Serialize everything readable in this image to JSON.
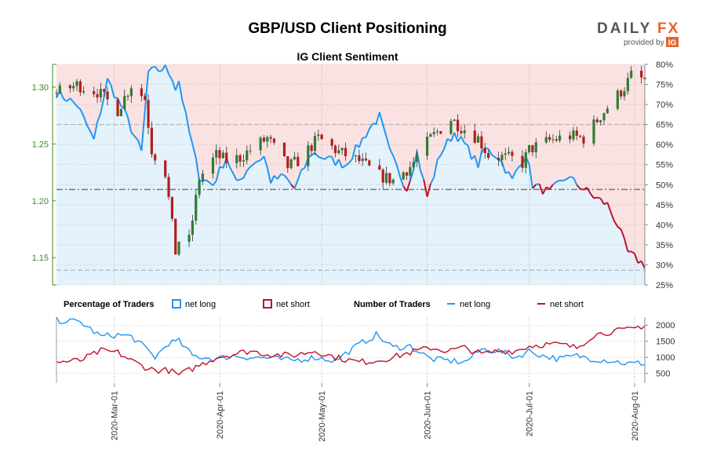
{
  "header": {
    "title": "GBP/USD Client Positioning",
    "brand_daily": "DAILY",
    "brand_fx": "FX",
    "provided_by": "provided by",
    "ig": "IG"
  },
  "colors": {
    "net_long": "#2196f3",
    "net_short": "#c0102a",
    "candle_up": "#2e7d32",
    "candle_down": "#b71c1c",
    "long_fill": "#e4f2fb",
    "short_fill": "#fbe2e2",
    "price_axis": "#3a8a22",
    "brand_orange": "#e8632b"
  },
  "chart_data": [
    {
      "type": "candlestick+area",
      "title": "IG Client Sentiment",
      "price_axis": {
        "side": "left",
        "ticks": [
          "1.15",
          "1.20",
          "1.25",
          "1.30"
        ],
        "ylim": [
          1.126,
          1.32
        ]
      },
      "sentiment_axis": {
        "side": "right",
        "ticks": [
          "25%",
          "30%",
          "35%",
          "40%",
          "45%",
          "50%",
          "55%",
          "60%",
          "65%",
          "70%",
          "75%",
          "80%"
        ],
        "ylim": [
          25,
          80
        ]
      },
      "x_range": [
        "2020-02-13",
        "2020-08-04"
      ],
      "reference_levels": [
        1.21,
        1.139,
        1.267
      ],
      "price_anchors": [
        [
          "2020-02-13",
          1.295
        ],
        [
          "2020-02-19",
          1.302
        ],
        [
          "2020-02-25",
          1.296
        ],
        [
          "2020-03-02",
          1.28
        ],
        [
          "2020-03-06",
          1.302
        ],
        [
          "2020-03-10",
          1.29
        ],
        [
          "2020-03-12",
          1.245
        ],
        [
          "2020-03-16",
          1.225
        ],
        [
          "2020-03-19",
          1.155
        ],
        [
          "2020-03-20",
          1.165
        ],
        [
          "2020-03-23",
          1.165
        ],
        [
          "2020-03-26",
          1.22
        ],
        [
          "2020-03-31",
          1.24
        ],
        [
          "2020-04-03",
          1.235
        ],
        [
          "2020-04-07",
          1.238
        ],
        [
          "2020-04-10",
          1.245
        ],
        [
          "2020-04-15",
          1.255
        ],
        [
          "2020-04-21",
          1.23
        ],
        [
          "2020-04-24",
          1.235
        ],
        [
          "2020-04-30",
          1.255
        ],
        [
          "2020-05-06",
          1.243
        ],
        [
          "2020-05-12",
          1.235
        ],
        [
          "2020-05-18",
          1.222
        ],
        [
          "2020-05-22",
          1.218
        ],
        [
          "2020-05-27",
          1.23
        ],
        [
          "2020-06-02",
          1.255
        ],
        [
          "2020-06-08",
          1.272
        ],
        [
          "2020-06-11",
          1.265
        ],
        [
          "2020-06-16",
          1.255
        ],
        [
          "2020-06-19",
          1.24
        ],
        [
          "2020-06-26",
          1.237
        ],
        [
          "2020-06-29",
          1.233
        ],
        [
          "2020-07-01",
          1.245
        ],
        [
          "2020-07-07",
          1.253
        ],
        [
          "2020-07-13",
          1.257
        ],
        [
          "2020-07-17",
          1.255
        ],
        [
          "2020-07-22",
          1.275
        ],
        [
          "2020-07-29",
          1.3
        ],
        [
          "2020-07-31",
          1.31
        ],
        [
          "2020-08-04",
          1.306
        ]
      ],
      "net_long_pct_anchors": [
        [
          "2020-02-13",
          73
        ],
        [
          "2020-02-19",
          70
        ],
        [
          "2020-02-24",
          61
        ],
        [
          "2020-02-28",
          76
        ],
        [
          "2020-03-04",
          68
        ],
        [
          "2020-03-09",
          58
        ],
        [
          "2020-03-11",
          78
        ],
        [
          "2020-03-16",
          79
        ],
        [
          "2020-03-18",
          77
        ],
        [
          "2020-03-19",
          74
        ],
        [
          "2020-03-20",
          76
        ],
        [
          "2020-03-22",
          67
        ],
        [
          "2020-03-26",
          52
        ],
        [
          "2020-03-30",
          50
        ],
        [
          "2020-04-03",
          57
        ],
        [
          "2020-04-06",
          50
        ],
        [
          "2020-04-10",
          55
        ],
        [
          "2020-04-14",
          57
        ],
        [
          "2020-04-16",
          51
        ],
        [
          "2020-04-20",
          52
        ],
        [
          "2020-04-23",
          49
        ],
        [
          "2020-04-28",
          58
        ],
        [
          "2020-05-04",
          56
        ],
        [
          "2020-05-08",
          55
        ],
        [
          "2020-05-12",
          60
        ],
        [
          "2020-05-15",
          64
        ],
        [
          "2020-05-18",
          67
        ],
        [
          "2020-05-21",
          58
        ],
        [
          "2020-05-26",
          49
        ],
        [
          "2020-05-29",
          58
        ],
        [
          "2020-06-01",
          47
        ],
        [
          "2020-06-05",
          58
        ],
        [
          "2020-06-09",
          63
        ],
        [
          "2020-06-12",
          60
        ],
        [
          "2020-06-16",
          55
        ],
        [
          "2020-06-18",
          59
        ],
        [
          "2020-06-22",
          57
        ],
        [
          "2020-06-26",
          51
        ],
        [
          "2020-06-30",
          58
        ],
        [
          "2020-07-02",
          50
        ],
        [
          "2020-07-07",
          48
        ],
        [
          "2020-07-12",
          52
        ],
        [
          "2020-07-17",
          49
        ],
        [
          "2020-07-20",
          47
        ],
        [
          "2020-07-24",
          45
        ],
        [
          "2020-07-27",
          40
        ],
        [
          "2020-07-30",
          33
        ],
        [
          "2020-08-04",
          30
        ]
      ],
      "net_short_pct_anchors": [
        [
          "2020-02-13",
          27
        ],
        [
          "2020-02-19",
          30
        ],
        [
          "2020-02-24",
          39
        ],
        [
          "2020-02-28",
          24
        ],
        [
          "2020-03-04",
          32
        ],
        [
          "2020-03-09",
          42
        ],
        [
          "2020-03-11",
          22
        ],
        [
          "2020-03-16",
          21
        ],
        [
          "2020-03-18",
          23
        ],
        [
          "2020-03-19",
          26
        ],
        [
          "2020-03-20",
          24
        ],
        [
          "2020-03-22",
          33
        ],
        [
          "2020-03-26",
          48
        ],
        [
          "2020-03-30",
          50
        ],
        [
          "2020-04-03",
          43
        ],
        [
          "2020-04-06",
          50
        ],
        [
          "2020-04-10",
          45
        ],
        [
          "2020-04-14",
          43
        ],
        [
          "2020-04-16",
          49
        ],
        [
          "2020-04-20",
          48
        ],
        [
          "2020-04-23",
          51
        ],
        [
          "2020-04-28",
          42
        ],
        [
          "2020-05-04",
          44
        ],
        [
          "2020-05-08",
          45
        ],
        [
          "2020-05-12",
          40
        ],
        [
          "2020-05-15",
          36
        ],
        [
          "2020-05-18",
          33
        ],
        [
          "2020-05-21",
          42
        ],
        [
          "2020-05-26",
          51
        ],
        [
          "2020-05-29",
          42
        ],
        [
          "2020-06-01",
          53
        ],
        [
          "2020-06-05",
          42
        ],
        [
          "2020-06-09",
          37
        ],
        [
          "2020-06-12",
          40
        ],
        [
          "2020-06-16",
          45
        ],
        [
          "2020-06-18",
          41
        ],
        [
          "2020-06-22",
          43
        ],
        [
          "2020-06-26",
          49
        ],
        [
          "2020-06-30",
          42
        ],
        [
          "2020-07-02",
          50
        ],
        [
          "2020-07-07",
          52
        ],
        [
          "2020-07-12",
          48
        ],
        [
          "2020-07-17",
          51
        ],
        [
          "2020-07-20",
          53
        ],
        [
          "2020-07-24",
          55
        ],
        [
          "2020-07-27",
          60
        ],
        [
          "2020-07-30",
          67
        ],
        [
          "2020-08-04",
          70
        ]
      ]
    },
    {
      "type": "line",
      "legend": [
        {
          "group": "Percentage of Traders",
          "items": [
            "net long",
            "net short"
          ]
        },
        {
          "group": "Number of Traders",
          "items": [
            "net long",
            "net short"
          ]
        }
      ],
      "y_axis": {
        "side": "right",
        "ticks": [
          "500",
          "1000",
          "1500",
          "2000"
        ],
        "ylim": [
          200,
          2250
        ]
      },
      "x_ticks": [
        "2020-Mar-01",
        "2020-Apr-01",
        "2020-May-01",
        "2020-Jun-01",
        "2020-Jul-01",
        "2020-Aug-01"
      ],
      "series": [
        {
          "name": "net long",
          "anchors": [
            [
              "2020-02-13",
              2150
            ],
            [
              "2020-02-20",
              2100
            ],
            [
              "2020-02-26",
              1650
            ],
            [
              "2020-03-02",
              1700
            ],
            [
              "2020-03-06",
              1650
            ],
            [
              "2020-03-10",
              1300
            ],
            [
              "2020-03-13",
              1000
            ],
            [
              "2020-03-17",
              1450
            ],
            [
              "2020-03-20",
              1500
            ],
            [
              "2020-03-24",
              1050
            ],
            [
              "2020-03-31",
              950
            ],
            [
              "2020-04-05",
              1050
            ],
            [
              "2020-04-10",
              1000
            ],
            [
              "2020-04-15",
              980
            ],
            [
              "2020-04-22",
              900
            ],
            [
              "2020-04-29",
              1000
            ],
            [
              "2020-05-05",
              900
            ],
            [
              "2020-05-12",
              1400
            ],
            [
              "2020-05-17",
              1700
            ],
            [
              "2020-05-22",
              1300
            ],
            [
              "2020-05-27",
              1350
            ],
            [
              "2020-06-02",
              950
            ],
            [
              "2020-06-07",
              900
            ],
            [
              "2020-06-12",
              850
            ],
            [
              "2020-06-17",
              1250
            ],
            [
              "2020-06-22",
              1200
            ],
            [
              "2020-06-27",
              1000
            ],
            [
              "2020-07-01",
              1200
            ],
            [
              "2020-07-05",
              1050
            ],
            [
              "2020-07-10",
              950
            ],
            [
              "2020-07-15",
              1050
            ],
            [
              "2020-07-20",
              950
            ],
            [
              "2020-07-25",
              900
            ],
            [
              "2020-07-30",
              800
            ],
            [
              "2020-08-04",
              820
            ]
          ]
        },
        {
          "name": "net short",
          "anchors": [
            [
              "2020-02-13",
              850
            ],
            [
              "2020-02-20",
              900
            ],
            [
              "2020-02-26",
              1200
            ],
            [
              "2020-03-02",
              1150
            ],
            [
              "2020-03-06",
              900
            ],
            [
              "2020-03-10",
              700
            ],
            [
              "2020-03-13",
              600
            ],
            [
              "2020-03-17",
              600
            ],
            [
              "2020-03-20",
              450
            ],
            [
              "2020-03-24",
              650
            ],
            [
              "2020-03-31",
              1000
            ],
            [
              "2020-04-05",
              1100
            ],
            [
              "2020-04-10",
              1200
            ],
            [
              "2020-04-15",
              1100
            ],
            [
              "2020-04-22",
              1050
            ],
            [
              "2020-04-29",
              1200
            ],
            [
              "2020-05-05",
              1000
            ],
            [
              "2020-05-12",
              850
            ],
            [
              "2020-05-17",
              900
            ],
            [
              "2020-05-22",
              1000
            ],
            [
              "2020-05-27",
              1150
            ],
            [
              "2020-06-02",
              1300
            ],
            [
              "2020-06-07",
              1200
            ],
            [
              "2020-06-12",
              1300
            ],
            [
              "2020-06-17",
              1100
            ],
            [
              "2020-06-22",
              1200
            ],
            [
              "2020-06-27",
              1200
            ],
            [
              "2020-07-01",
              1350
            ],
            [
              "2020-07-05",
              1400
            ],
            [
              "2020-07-10",
              1400
            ],
            [
              "2020-07-15",
              1300
            ],
            [
              "2020-07-20",
              1700
            ],
            [
              "2020-07-25",
              1800
            ],
            [
              "2020-07-30",
              1850
            ],
            [
              "2020-08-04",
              2000
            ]
          ]
        }
      ]
    }
  ]
}
